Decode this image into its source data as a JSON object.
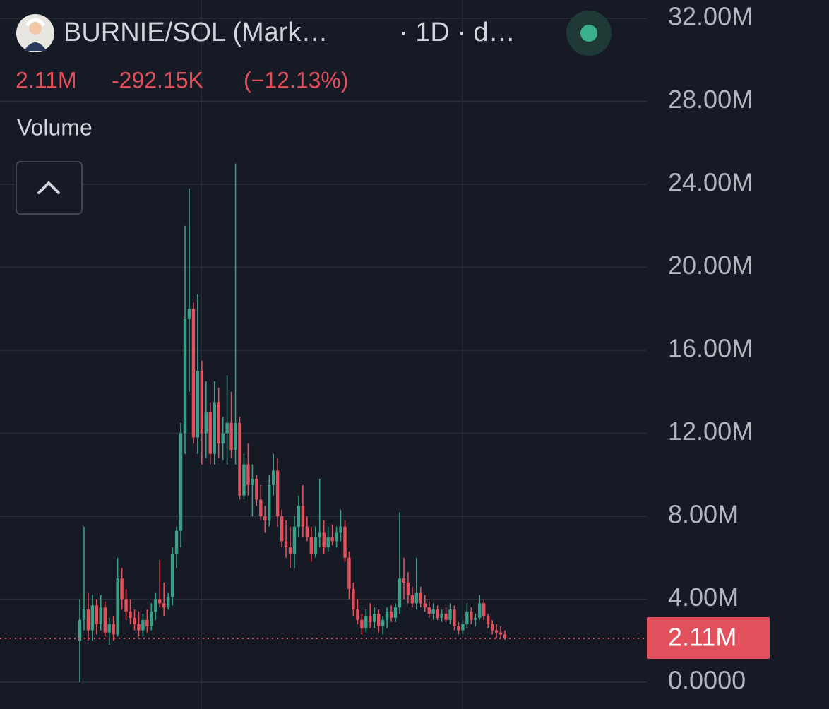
{
  "chart_data": {
    "type": "candlestick",
    "title": "BURNIE/SOL (Mark…",
    "interval": "· 1D · d…",
    "last_price": {
      "value": 2.11,
      "label": "2.11M"
    },
    "change": {
      "value": -0.29215,
      "label": "-292.15K"
    },
    "change_percent": {
      "value": -12.13,
      "label": "(−12.13%)"
    },
    "indicator": "Volume",
    "up_color": "#3a9f86",
    "down_color": "#e2505c",
    "ylim": [
      0,
      32
    ],
    "yticks": [
      {
        "value": 0,
        "label": "0.0000"
      },
      {
        "value": 4,
        "label": "4.00M"
      },
      {
        "value": 8,
        "label": "8.00M"
      },
      {
        "value": 12,
        "label": "12.00M"
      },
      {
        "value": 16,
        "label": "16.00M"
      },
      {
        "value": 20,
        "label": "20.00M"
      },
      {
        "value": 24,
        "label": "24.00M"
      },
      {
        "value": 28,
        "label": "28.00M"
      },
      {
        "value": 32,
        "label": "32.00M"
      }
    ],
    "grid": true,
    "open": [
      2.0,
      3.0,
      3.5,
      2.5,
      3.7,
      2.8,
      3.6,
      2.4,
      2.8,
      2.3,
      5.0,
      4.0,
      3.4,
      3.1,
      2.8,
      2.5,
      3.0,
      2.7,
      3.4,
      4.0,
      3.8,
      3.6,
      4.1,
      6.2,
      7.3,
      12.0,
      17.5,
      18.0,
      11.8,
      15.0,
      12.0,
      13.0,
      11.0,
      13.5,
      11.5,
      12.0,
      12.5,
      11.2,
      12.5,
      9.0,
      10.5,
      9.5,
      9.8,
      8.8,
      8.0,
      7.8,
      9.5,
      10.2,
      8.0,
      6.8,
      6.5,
      6.2,
      7.5,
      8.5,
      7.5,
      7.0,
      6.2,
      7.0,
      7.2,
      6.5,
      7.0,
      6.8,
      7.2,
      7.5,
      6.0,
      4.5,
      3.5,
      3.0,
      2.6,
      3.2,
      2.9,
      3.3,
      2.7,
      3.0,
      3.4,
      3.1,
      3.6,
      5.0,
      4.8,
      4.2,
      3.8,
      4.3,
      3.8,
      3.6,
      3.3,
      3.5,
      3.1,
      3.3,
      3.0,
      3.5,
      2.7,
      2.5,
      2.8,
      3.4,
      3.0,
      3.1,
      3.8,
      3.2,
      2.8,
      2.5,
      2.4,
      2.3
    ],
    "high": [
      4.0,
      7.5,
      4.3,
      4.2,
      4.0,
      4.2,
      3.9,
      3.1,
      3.2,
      6.0,
      5.5,
      4.5,
      4.0,
      3.5,
      3.4,
      3.3,
      3.5,
      3.8,
      4.3,
      5.9,
      4.8,
      4.3,
      6.5,
      7.5,
      12.5,
      22.0,
      23.8,
      18.3,
      18.7,
      15.5,
      14.5,
      13.5,
      14.5,
      14.2,
      12.8,
      14.8,
      14.0,
      25.0,
      12.8,
      11.0,
      11.5,
      10.5,
      10.0,
      9.5,
      8.5,
      10.0,
      11.0,
      10.8,
      8.3,
      7.8,
      7.5,
      8.0,
      9.0,
      9.5,
      8.0,
      7.5,
      7.5,
      9.8,
      7.8,
      7.5,
      7.6,
      7.5,
      8.3,
      7.8,
      6.3,
      4.8,
      4.0,
      3.3,
      3.5,
      3.8,
      3.6,
      3.5,
      3.2,
      3.6,
      3.7,
      3.8,
      8.2,
      6.0,
      5.3,
      4.6,
      6.0,
      4.6,
      4.2,
      3.9,
      3.8,
      3.7,
      3.5,
      3.6,
      3.8,
      3.7,
      2.9,
      3.0,
      3.8,
      3.6,
      3.3,
      4.2,
      4.0,
      3.3,
      3.0,
      2.8,
      2.7,
      2.5
    ],
    "low": [
      0.0,
      2.5,
      2.0,
      2.0,
      2.3,
      2.5,
      2.2,
      1.8,
      2.0,
      2.2,
      3.5,
      3.0,
      2.8,
      2.5,
      2.2,
      2.2,
      2.4,
      2.5,
      3.0,
      3.6,
      3.2,
      3.5,
      3.7,
      5.5,
      6.5,
      11.0,
      14.0,
      11.5,
      11.0,
      10.5,
      10.8,
      10.5,
      10.5,
      10.8,
      10.7,
      10.5,
      10.8,
      10.5,
      8.8,
      8.8,
      9.0,
      8.0,
      8.5,
      7.8,
      7.2,
      7.5,
      9.0,
      7.5,
      6.5,
      6.0,
      5.5,
      5.5,
      7.0,
      7.0,
      6.8,
      5.8,
      6.0,
      6.5,
      6.2,
      6.3,
      6.6,
      6.5,
      6.8,
      5.8,
      4.0,
      3.2,
      2.8,
      2.3,
      2.4,
      2.6,
      2.6,
      2.4,
      2.3,
      2.6,
      2.9,
      2.9,
      3.3,
      4.0,
      3.8,
      3.6,
      3.5,
      3.6,
      3.4,
      3.1,
      3.0,
      3.0,
      2.9,
      2.9,
      2.8,
      2.5,
      2.3,
      2.3,
      2.6,
      2.8,
      2.7,
      3.0,
      3.0,
      2.6,
      2.3,
      2.1,
      2.1,
      2.05
    ],
    "close": [
      3.0,
      3.5,
      2.5,
      3.7,
      2.8,
      3.6,
      2.4,
      2.8,
      2.3,
      5.0,
      4.0,
      3.4,
      3.1,
      2.8,
      2.5,
      3.0,
      2.7,
      3.4,
      4.0,
      3.8,
      3.6,
      4.1,
      6.2,
      7.3,
      12.0,
      17.5,
      18.0,
      11.8,
      15.0,
      12.0,
      13.0,
      11.0,
      13.5,
      11.5,
      12.0,
      12.5,
      11.2,
      12.5,
      9.0,
      10.5,
      9.5,
      9.8,
      8.8,
      8.0,
      7.8,
      9.5,
      10.2,
      8.0,
      6.8,
      6.5,
      6.2,
      7.5,
      8.5,
      7.5,
      7.0,
      6.2,
      7.0,
      7.2,
      6.5,
      7.0,
      6.8,
      7.2,
      7.5,
      6.0,
      4.5,
      3.5,
      3.0,
      2.6,
      3.2,
      2.9,
      3.3,
      2.7,
      3.0,
      3.4,
      3.1,
      3.6,
      5.0,
      4.8,
      4.2,
      3.8,
      4.3,
      3.8,
      3.6,
      3.3,
      3.5,
      3.1,
      3.3,
      3.0,
      3.5,
      2.7,
      2.5,
      2.8,
      3.4,
      3.0,
      3.1,
      3.8,
      3.2,
      2.8,
      2.5,
      2.4,
      2.3,
      2.11
    ]
  }
}
